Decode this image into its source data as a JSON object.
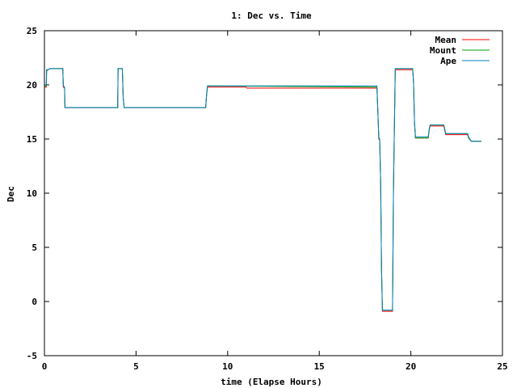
{
  "chart_data": {
    "type": "line",
    "title": "1: Dec vs. Time",
    "xlabel": "time (Elapse Hours)",
    "ylabel": "Dec",
    "xlim": [
      0,
      25
    ],
    "ylim": [
      -5,
      25
    ],
    "xticks": [
      0,
      5,
      10,
      15,
      20,
      25
    ],
    "yticks": [
      -5,
      0,
      5,
      10,
      15,
      20,
      25
    ],
    "grid": false,
    "legend_position": "top-right",
    "series": [
      {
        "name": "Mean",
        "color": "#ff0000",
        "points": [
          [
            0,
            19.8
          ],
          [
            0.1,
            19.8
          ],
          [
            0.12,
            21.3
          ],
          [
            0.2,
            21.4
          ],
          [
            0.3,
            21.5
          ],
          [
            1.0,
            21.5
          ],
          [
            1.03,
            19.8
          ],
          [
            1.1,
            19.7
          ],
          [
            1.12,
            17.9
          ],
          [
            4.0,
            17.9
          ],
          [
            4.02,
            21.5
          ],
          [
            4.25,
            21.5
          ],
          [
            4.3,
            18.8
          ],
          [
            4.35,
            17.9
          ],
          [
            8.8,
            17.9
          ],
          [
            8.85,
            19.0
          ],
          [
            8.9,
            19.8
          ],
          [
            11.0,
            19.8
          ],
          [
            11.05,
            19.7
          ],
          [
            18.15,
            19.7
          ],
          [
            18.2,
            17.4
          ],
          [
            18.25,
            15.0
          ],
          [
            18.3,
            14.9
          ],
          [
            18.35,
            11.0
          ],
          [
            18.4,
            3.0
          ],
          [
            18.45,
            -0.9
          ],
          [
            19.0,
            -0.9
          ],
          [
            19.05,
            10.4
          ],
          [
            19.15,
            21.4
          ],
          [
            20.1,
            21.4
          ],
          [
            20.15,
            20.0
          ],
          [
            20.2,
            16.5
          ],
          [
            20.25,
            15.1
          ],
          [
            20.95,
            15.1
          ],
          [
            21.0,
            15.8
          ],
          [
            21.05,
            16.2
          ],
          [
            21.8,
            16.2
          ],
          [
            21.85,
            15.8
          ],
          [
            21.9,
            15.4
          ],
          [
            23.1,
            15.4
          ],
          [
            23.15,
            15.1
          ],
          [
            23.3,
            14.8
          ],
          [
            23.85,
            14.8
          ]
        ]
      },
      {
        "name": "Mount",
        "color": "#00a000",
        "points": [
          [
            0,
            19.9
          ],
          [
            0.1,
            19.9
          ],
          [
            0.12,
            21.4
          ],
          [
            0.2,
            21.4
          ],
          [
            0.3,
            21.5
          ],
          [
            1.0,
            21.5
          ],
          [
            1.03,
            19.9
          ],
          [
            1.1,
            19.8
          ],
          [
            1.12,
            17.9
          ],
          [
            4.0,
            17.9
          ],
          [
            4.02,
            21.5
          ],
          [
            4.25,
            21.5
          ],
          [
            4.3,
            18.8
          ],
          [
            4.35,
            17.9
          ],
          [
            8.8,
            17.9
          ],
          [
            8.85,
            19.1
          ],
          [
            8.9,
            19.9
          ],
          [
            18.15,
            19.8
          ],
          [
            18.2,
            17.5
          ],
          [
            18.25,
            15.1
          ],
          [
            18.3,
            15.0
          ],
          [
            18.35,
            11.1
          ],
          [
            18.4,
            3.1
          ],
          [
            18.45,
            -0.8
          ],
          [
            19.0,
            -0.8
          ],
          [
            19.05,
            10.5
          ],
          [
            19.15,
            21.5
          ],
          [
            20.1,
            21.5
          ],
          [
            20.15,
            20.1
          ],
          [
            20.2,
            16.6
          ],
          [
            20.25,
            15.1
          ],
          [
            20.95,
            15.1
          ],
          [
            21.0,
            15.9
          ],
          [
            21.05,
            16.3
          ],
          [
            21.8,
            16.3
          ],
          [
            21.85,
            15.9
          ],
          [
            21.9,
            15.5
          ],
          [
            23.1,
            15.5
          ],
          [
            23.15,
            15.1
          ],
          [
            23.3,
            14.8
          ],
          [
            23.85,
            14.8
          ]
        ]
      },
      {
        "name": "Ape",
        "color": "#0080c0",
        "points": [
          [
            0,
            20.0
          ],
          [
            0.1,
            20.0
          ],
          [
            0.12,
            21.4
          ],
          [
            0.2,
            21.4
          ],
          [
            0.3,
            21.5
          ],
          [
            1.0,
            21.5
          ],
          [
            1.03,
            19.9
          ],
          [
            1.1,
            19.8
          ],
          [
            1.12,
            17.9
          ],
          [
            4.0,
            17.9
          ],
          [
            4.02,
            21.5
          ],
          [
            4.25,
            21.5
          ],
          [
            4.3,
            18.8
          ],
          [
            4.35,
            17.9
          ],
          [
            8.8,
            17.9
          ],
          [
            8.85,
            19.1
          ],
          [
            8.9,
            19.9
          ],
          [
            18.15,
            19.9
          ],
          [
            18.2,
            17.5
          ],
          [
            18.25,
            15.2
          ],
          [
            18.3,
            15.0
          ],
          [
            18.35,
            11.1
          ],
          [
            18.4,
            3.1
          ],
          [
            18.45,
            -0.8
          ],
          [
            19.0,
            -0.8
          ],
          [
            19.05,
            10.5
          ],
          [
            19.15,
            21.5
          ],
          [
            20.1,
            21.5
          ],
          [
            20.15,
            20.1
          ],
          [
            20.2,
            16.6
          ],
          [
            20.25,
            15.2
          ],
          [
            20.95,
            15.2
          ],
          [
            21.0,
            15.9
          ],
          [
            21.05,
            16.3
          ],
          [
            21.8,
            16.3
          ],
          [
            21.85,
            15.9
          ],
          [
            21.9,
            15.5
          ],
          [
            23.1,
            15.5
          ],
          [
            23.15,
            15.2
          ],
          [
            23.3,
            14.8
          ],
          [
            23.85,
            14.8
          ]
        ]
      }
    ]
  }
}
